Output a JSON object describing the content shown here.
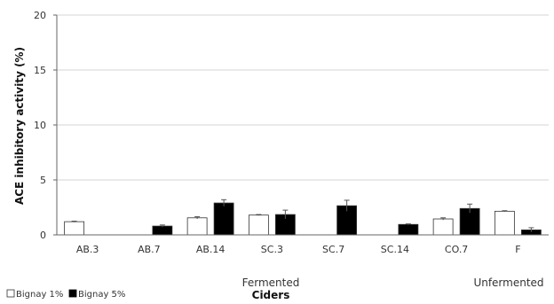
{
  "chart_data": {
    "type": "bar",
    "xlabel": "Ciders",
    "ylabel": "ACE inhibitory activity (%)",
    "ylim": [
      0,
      20
    ],
    "yticks": [
      "0",
      "5",
      "10",
      "15",
      "20"
    ],
    "grid": true,
    "legend_position": "bottom-left",
    "categories": [
      "AB.3",
      "AB.7",
      "AB.14",
      "SC.3",
      "SC.7",
      "SC.14",
      "CO.7",
      "F"
    ],
    "group_labels": {
      "fermented": "Fermented",
      "unfermented": "Unfermented"
    },
    "series": [
      {
        "name": "Bignay 1%",
        "color": "#ffffff",
        "values": [
          1.2,
          0,
          1.55,
          1.8,
          0,
          0,
          1.45,
          2.15
        ],
        "errors": [
          0.05,
          0,
          0.1,
          0.05,
          0,
          0,
          0.1,
          0.05
        ]
      },
      {
        "name": "Bignay 5%",
        "color": "#000000",
        "values": [
          0,
          0.8,
          2.9,
          1.85,
          2.65,
          0.95,
          2.4,
          0.45
        ],
        "errors": [
          0,
          0.1,
          0.3,
          0.4,
          0.5,
          0.05,
          0.4,
          0.2
        ]
      }
    ]
  }
}
